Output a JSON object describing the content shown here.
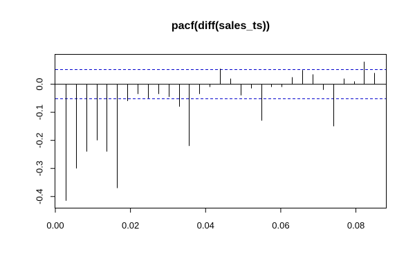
{
  "chart_data": {
    "type": "bar",
    "title": "pacf(diff(sales_ts))",
    "xlabel": "",
    "ylabel": "",
    "xlim": [
      0.0,
      0.088
    ],
    "ylim": [
      -0.44,
      0.105
    ],
    "x_ticks": [
      0.0,
      0.02,
      0.04,
      0.06,
      0.08
    ],
    "x_tick_labels": [
      "0.00",
      "0.02",
      "0.04",
      "0.06",
      "0.08"
    ],
    "y_ticks": [
      -0.4,
      -0.3,
      -0.2,
      -0.1,
      0.0
    ],
    "y_tick_labels": [
      "-0.4",
      "-0.3",
      "-0.2",
      "-0.1",
      "0.0"
    ],
    "zero_line": 0,
    "confidence_bound": 0.052,
    "confidence_color": "#0000cc",
    "bar_color": "#000000",
    "grid": false,
    "x": [
      0.00274,
      0.00548,
      0.00822,
      0.01096,
      0.0137,
      0.01644,
      0.01918,
      0.02192,
      0.02466,
      0.0274,
      0.03014,
      0.03288,
      0.03562,
      0.03836,
      0.0411,
      0.04384,
      0.04658,
      0.04932,
      0.05205,
      0.05479,
      0.05753,
      0.06027,
      0.06301,
      0.06575,
      0.06849,
      0.07123,
      0.07397,
      0.07671,
      0.07945,
      0.08219,
      0.08493
    ],
    "values": [
      -0.415,
      -0.3,
      -0.24,
      -0.2,
      -0.24,
      -0.37,
      -0.06,
      -0.035,
      -0.05,
      -0.035,
      -0.045,
      -0.08,
      -0.22,
      -0.035,
      -0.01,
      0.055,
      0.02,
      -0.04,
      -0.015,
      -0.13,
      -0.01,
      -0.01,
      0.025,
      0.05,
      0.035,
      -0.02,
      -0.15,
      0.02,
      0.01,
      0.08,
      0.04
    ]
  }
}
